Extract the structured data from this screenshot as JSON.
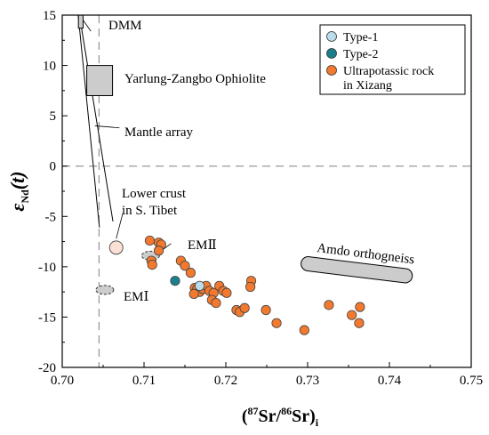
{
  "chart_data": {
    "type": "scatter",
    "title": "",
    "xlabel": {
      "open": "(",
      "sup1": "87",
      "mid1": "Sr/",
      "sup2": "86",
      "mid2": "Sr)",
      "sub": "i"
    },
    "ylabel": {
      "main": "ε",
      "sub": "Nd",
      "tail": "(t)"
    },
    "xlim": [
      0.7,
      0.75
    ],
    "ylim": [
      -20,
      15
    ],
    "x_ticks": [
      {
        "v": 0.7,
        "label": "0.70"
      },
      {
        "v": 0.71,
        "label": "0.71"
      },
      {
        "v": 0.72,
        "label": "0.72"
      },
      {
        "v": 0.73,
        "label": "0.73"
      },
      {
        "v": 0.74,
        "label": "0.74"
      },
      {
        "v": 0.75,
        "label": "0.75"
      }
    ],
    "y_ticks": [
      {
        "v": 15,
        "label": "15"
      },
      {
        "v": 10,
        "label": "10"
      },
      {
        "v": 5,
        "label": "5"
      },
      {
        "v": 0,
        "label": "0"
      },
      {
        "v": -5,
        "label": "-5"
      },
      {
        "v": -10,
        "label": "-10"
      },
      {
        "v": -15,
        "label": "-15"
      },
      {
        "v": -20,
        "label": "-20"
      }
    ],
    "reference_lines": {
      "bulk_earth_x": 0.7045,
      "bulk_earth_y": 0
    },
    "legend": {
      "placement": "top-right",
      "entries": [
        {
          "label": "Type-1",
          "color": "#bcdcec"
        },
        {
          "label": "Type-2",
          "color": "#1a7e8c"
        },
        {
          "label_lines": [
            "Ultrapotassic rock",
            "in Xizang"
          ],
          "color": "#f2792e"
        }
      ]
    },
    "colors": {
      "type1": "#bcdcec",
      "type2": "#1a7e8c",
      "ultrapotassic": "#f2792e",
      "field_fill": "#cccccc",
      "lower_crust_fill": "#fbe0d6"
    },
    "series": [
      {
        "name": "Ultrapotassic rock in Xizang",
        "points": [
          [
            0.7107,
            -7.4
          ],
          [
            0.7118,
            -7.6
          ],
          [
            0.7121,
            -7.8
          ],
          [
            0.7118,
            -8.4
          ],
          [
            0.7109,
            -9.4
          ],
          [
            0.711,
            -9.8
          ],
          [
            0.7145,
            -9.4
          ],
          [
            0.715,
            -9.9
          ],
          [
            0.7157,
            -10.6
          ],
          [
            0.7162,
            -12.1
          ],
          [
            0.7165,
            -12.2
          ],
          [
            0.7168,
            -12.5
          ],
          [
            0.7161,
            -12.7
          ],
          [
            0.7172,
            -12.2
          ],
          [
            0.7176,
            -11.9
          ],
          [
            0.718,
            -12.4
          ],
          [
            0.7185,
            -12.6
          ],
          [
            0.7192,
            -11.9
          ],
          [
            0.7197,
            -12.4
          ],
          [
            0.7201,
            -12.6
          ],
          [
            0.7183,
            -13.3
          ],
          [
            0.7188,
            -13.6
          ],
          [
            0.7213,
            -14.3
          ],
          [
            0.7217,
            -14.5
          ],
          [
            0.7223,
            -14.1
          ],
          [
            0.7231,
            -11.4
          ],
          [
            0.723,
            -12.0
          ],
          [
            0.7249,
            -14.3
          ],
          [
            0.7262,
            -15.6
          ],
          [
            0.7296,
            -16.3
          ],
          [
            0.7326,
            -13.8
          ],
          [
            0.7354,
            -14.8
          ],
          [
            0.7364,
            -14.0
          ],
          [
            0.7363,
            -15.6
          ]
        ]
      },
      {
        "name": "Type-1",
        "points": [
          [
            0.7168,
            -11.9
          ]
        ]
      },
      {
        "name": "Type-2",
        "points": [
          [
            0.7138,
            -11.4
          ]
        ]
      }
    ],
    "annotations": [
      {
        "text": "DMM"
      },
      {
        "text": "Yarlung-Zangbo Ophiolite"
      },
      {
        "text": "Mantle array"
      },
      {
        "text_lines": [
          "Lower crust",
          "in S. Tibet"
        ]
      },
      {
        "text": "EMⅡ"
      },
      {
        "text": "EMⅠ"
      },
      {
        "text": "Amdo orthogneiss"
      }
    ]
  }
}
